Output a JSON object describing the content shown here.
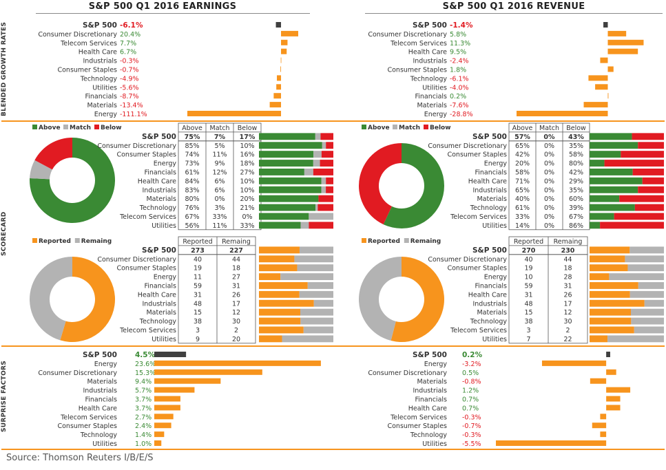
{
  "titles": {
    "earnings": "S&P 500 Q1 2016 EARNINGS",
    "revenue": "S&P 500 Q1 2016 REVENUE"
  },
  "side_labels": {
    "growth": "BLENDED GROWTH RATES",
    "scorecard": "SCORECARD",
    "surprise": "SURPRISE FACTORS"
  },
  "source": "Source: Thomson Reuters I/B/E/S",
  "colors": {
    "orange": "#f7941d",
    "green": "#3a8a34",
    "red": "#e11b22",
    "gray": "#b3b3b3",
    "dark": "#404040",
    "pos_text": "#3a8a34",
    "neg_text": "#e11b22"
  },
  "chart_data": [
    {
      "id": "earn_growth",
      "type": "bar",
      "orientation": "horizontal",
      "title": "S&P 500 Q1 2016 EARNINGS",
      "categories": [
        "S&P 500",
        "Consumer Discretionary",
        "Telecom Services",
        "Health Care",
        "Industrials",
        "Consumer Staples",
        "Technology",
        "Utilities",
        "Financials",
        "Materials",
        "Energy"
      ],
      "labels": [
        "-6.1%",
        "20.4%",
        "7.7%",
        "6.7%",
        "-0.3%",
        "-0.7%",
        "-4.9%",
        "-5.6%",
        "-8.7%",
        "-13.4%",
        "-111.1%"
      ],
      "values": [
        -6.1,
        20.4,
        7.7,
        6.7,
        -0.3,
        -0.7,
        -4.9,
        -5.6,
        -8.7,
        -13.4,
        -111.1
      ],
      "xlim": [
        -111.1,
        40
      ]
    },
    {
      "id": "rev_growth",
      "type": "bar",
      "orientation": "horizontal",
      "title": "S&P 500 Q1 2016 REVENUE",
      "categories": [
        "S&P 500",
        "Consumer Discretionary",
        "Telecom Services",
        "Health Care",
        "Industrials",
        "Consumer Staples",
        "Technology",
        "Utilities",
        "Financials",
        "Materials",
        "Energy"
      ],
      "labels": [
        "-1.4%",
        "5.8%",
        "11.3%",
        "9.5%",
        "-2.4%",
        "1.8%",
        "-6.1%",
        "-4.0%",
        "0.2%",
        "-7.6%",
        "-28.8%"
      ],
      "values": [
        -1.4,
        5.8,
        11.3,
        9.5,
        -2.4,
        1.8,
        -6.1,
        -4.0,
        0.2,
        -7.6,
        -28.8
      ],
      "xlim": [
        -28.8,
        12.5
      ]
    },
    {
      "id": "earn_score",
      "type": "table",
      "legend": [
        "Above",
        "Match",
        "Below"
      ],
      "columns": [
        "Above",
        "Match",
        "Below"
      ],
      "rows": [
        {
          "name": "S&P 500",
          "cells": [
            "75%",
            "7%",
            "17%"
          ],
          "values": [
            75,
            7,
            17
          ]
        },
        {
          "name": "Consumer Discretionary",
          "cells": [
            "85%",
            "5%",
            "10%"
          ],
          "values": [
            85,
            5,
            10
          ]
        },
        {
          "name": "Consumer Staples",
          "cells": [
            "74%",
            "11%",
            "16%"
          ],
          "values": [
            74,
            11,
            16
          ]
        },
        {
          "name": "Energy",
          "cells": [
            "73%",
            "9%",
            "18%"
          ],
          "values": [
            73,
            9,
            18
          ]
        },
        {
          "name": "Financials",
          "cells": [
            "61%",
            "12%",
            "27%"
          ],
          "values": [
            61,
            12,
            27
          ]
        },
        {
          "name": "Health Care",
          "cells": [
            "84%",
            "6%",
            "10%"
          ],
          "values": [
            84,
            6,
            10
          ]
        },
        {
          "name": "Industrials",
          "cells": [
            "83%",
            "6%",
            "10%"
          ],
          "values": [
            83,
            6,
            10
          ]
        },
        {
          "name": "Materials",
          "cells": [
            "80%",
            "0%",
            "20%"
          ],
          "values": [
            80,
            0,
            20
          ]
        },
        {
          "name": "Technology",
          "cells": [
            "76%",
            "3%",
            "21%"
          ],
          "values": [
            76,
            3,
            21
          ]
        },
        {
          "name": "Telecom Services",
          "cells": [
            "67%",
            "33%",
            "0%"
          ],
          "values": [
            67,
            33,
            0
          ]
        },
        {
          "name": "Utilities",
          "cells": [
            "56%",
            "11%",
            "33%"
          ],
          "values": [
            56,
            11,
            33
          ]
        }
      ]
    },
    {
      "id": "rev_score",
      "type": "table",
      "legend": [
        "Above",
        "Match",
        "Below"
      ],
      "columns": [
        "Above",
        "Match",
        "Below"
      ],
      "rows": [
        {
          "name": "S&P 500",
          "cells": [
            "57%",
            "0%",
            "43%"
          ],
          "values": [
            57,
            0,
            43
          ]
        },
        {
          "name": "Consumer Discretionary",
          "cells": [
            "65%",
            "0%",
            "35%"
          ],
          "values": [
            65,
            0,
            35
          ]
        },
        {
          "name": "Consumer Staples",
          "cells": [
            "42%",
            "0%",
            "58%"
          ],
          "values": [
            42,
            0,
            58
          ]
        },
        {
          "name": "Energy",
          "cells": [
            "20%",
            "0%",
            "80%"
          ],
          "values": [
            20,
            0,
            80
          ]
        },
        {
          "name": "Financials",
          "cells": [
            "58%",
            "0%",
            "42%"
          ],
          "values": [
            58,
            0,
            42
          ]
        },
        {
          "name": "Health Care",
          "cells": [
            "71%",
            "0%",
            "29%"
          ],
          "values": [
            71,
            0,
            29
          ]
        },
        {
          "name": "Industrials",
          "cells": [
            "65%",
            "0%",
            "35%"
          ],
          "values": [
            65,
            0,
            35
          ]
        },
        {
          "name": "Materials",
          "cells": [
            "40%",
            "0%",
            "60%"
          ],
          "values": [
            40,
            0,
            60
          ]
        },
        {
          "name": "Technology",
          "cells": [
            "61%",
            "0%",
            "39%"
          ],
          "values": [
            61,
            0,
            39
          ]
        },
        {
          "name": "Telecom Services",
          "cells": [
            "33%",
            "0%",
            "67%"
          ],
          "values": [
            33,
            0,
            67
          ]
        },
        {
          "name": "Utilities",
          "cells": [
            "14%",
            "0%",
            "86%"
          ],
          "values": [
            14,
            0,
            86
          ]
        }
      ]
    },
    {
      "id": "earn_report",
      "type": "table",
      "legend": [
        "Reported",
        "Remaing"
      ],
      "columns": [
        "Reported",
        "Remaing"
      ],
      "rows": [
        {
          "name": "S&P 500",
          "cells": [
            "273",
            "227"
          ],
          "values": [
            273,
            227
          ]
        },
        {
          "name": "Consumer Discretionary",
          "cells": [
            "40",
            "44"
          ],
          "values": [
            40,
            44
          ]
        },
        {
          "name": "Consumer Staples",
          "cells": [
            "19",
            "18"
          ],
          "values": [
            19,
            18
          ]
        },
        {
          "name": "Energy",
          "cells": [
            "11",
            "27"
          ],
          "values": [
            11,
            27
          ]
        },
        {
          "name": "Financials",
          "cells": [
            "59",
            "31"
          ],
          "values": [
            59,
            31
          ]
        },
        {
          "name": "Health Care",
          "cells": [
            "31",
            "26"
          ],
          "values": [
            31,
            26
          ]
        },
        {
          "name": "Industrials",
          "cells": [
            "48",
            "17"
          ],
          "values": [
            48,
            17
          ]
        },
        {
          "name": "Materials",
          "cells": [
            "15",
            "12"
          ],
          "values": [
            15,
            12
          ]
        },
        {
          "name": "Technology",
          "cells": [
            "38",
            "30"
          ],
          "values": [
            38,
            30
          ]
        },
        {
          "name": "Telecom Services",
          "cells": [
            "3",
            "2"
          ],
          "values": [
            3,
            2
          ]
        },
        {
          "name": "Utilities",
          "cells": [
            "9",
            "20"
          ],
          "values": [
            9,
            20
          ]
        }
      ]
    },
    {
      "id": "rev_report",
      "type": "table",
      "legend": [
        "Reported",
        "Remaing"
      ],
      "columns": [
        "Reported",
        "Remaing"
      ],
      "rows": [
        {
          "name": "S&P 500",
          "cells": [
            "270",
            "230"
          ],
          "values": [
            270,
            230
          ]
        },
        {
          "name": "Consumer Discretionary",
          "cells": [
            "40",
            "44"
          ],
          "values": [
            40,
            44
          ]
        },
        {
          "name": "Consumer Staples",
          "cells": [
            "19",
            "18"
          ],
          "values": [
            19,
            18
          ]
        },
        {
          "name": "Energy",
          "cells": [
            "10",
            "28"
          ],
          "values": [
            10,
            28
          ]
        },
        {
          "name": "Financials",
          "cells": [
            "59",
            "31"
          ],
          "values": [
            59,
            31
          ]
        },
        {
          "name": "Health Care",
          "cells": [
            "31",
            "26"
          ],
          "values": [
            31,
            26
          ]
        },
        {
          "name": "Industrials",
          "cells": [
            "48",
            "17"
          ],
          "values": [
            48,
            17
          ]
        },
        {
          "name": "Materials",
          "cells": [
            "15",
            "12"
          ],
          "values": [
            15,
            12
          ]
        },
        {
          "name": "Technology",
          "cells": [
            "38",
            "30"
          ],
          "values": [
            38,
            30
          ]
        },
        {
          "name": "Telecom Services",
          "cells": [
            "3",
            "2"
          ],
          "values": [
            3,
            2
          ]
        },
        {
          "name": "Utilities",
          "cells": [
            "7",
            "22"
          ],
          "values": [
            7,
            22
          ]
        }
      ]
    },
    {
      "id": "earn_surprise",
      "type": "bar",
      "orientation": "horizontal",
      "categories": [
        "S&P 500",
        "Energy",
        "Consumer Discretionary",
        "Materials",
        "Industrials",
        "Financials",
        "Health Care",
        "Telecom Services",
        "Consumer Staples",
        "Technology",
        "Utilities"
      ],
      "labels": [
        "4.5%",
        "23.6%",
        "15.3%",
        "9.4%",
        "5.7%",
        "3.7%",
        "3.7%",
        "2.7%",
        "2.4%",
        "1.4%",
        "1.0%"
      ],
      "values": [
        4.5,
        23.6,
        15.3,
        9.4,
        5.7,
        3.7,
        3.7,
        2.7,
        2.4,
        1.4,
        1.0
      ],
      "xlim": [
        0,
        24
      ]
    },
    {
      "id": "rev_surprise",
      "type": "bar",
      "orientation": "horizontal",
      "categories": [
        "S&P 500",
        "Energy",
        "Consumer Discretionary",
        "Materials",
        "Industrials",
        "Financials",
        "Health Care",
        "Telecom Services",
        "Consumer Staples",
        "Technology",
        "Utilities"
      ],
      "labels": [
        "0.2%",
        "-3.2%",
        "0.5%",
        "-0.8%",
        "1.2%",
        "0.7%",
        "0.7%",
        "-0.3%",
        "-0.7%",
        "-0.3%",
        "-5.5%"
      ],
      "values": [
        0.2,
        -3.2,
        0.5,
        -0.8,
        1.2,
        0.7,
        0.7,
        -0.3,
        -0.7,
        -0.3,
        -5.5
      ],
      "xlim": [
        -5.5,
        1.3
      ]
    }
  ]
}
